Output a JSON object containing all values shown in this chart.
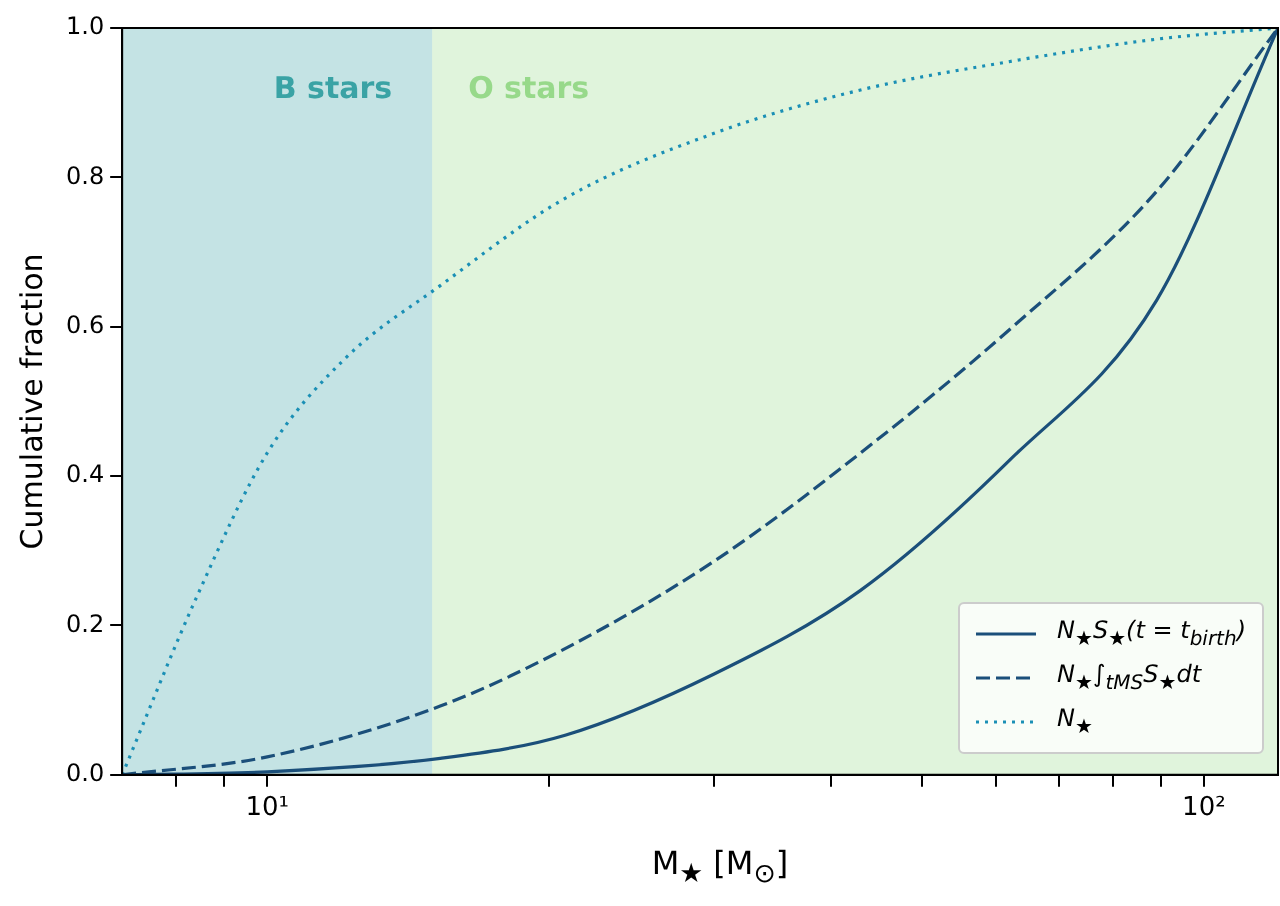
{
  "chart_data": {
    "type": "line",
    "xlabel": "M$_{★}$ [M$_{⊙}$]",
    "ylabel": "Cumulative fraction",
    "log": "x",
    "grid": false,
    "legend": "bottom right",
    "marker": "none",
    "xlim": [
      7,
      120
    ],
    "ylim": [
      0,
      1
    ],
    "xticks": [
      {
        "value": 8,
        "label": null
      },
      {
        "value": 9,
        "label": null
      },
      {
        "value": 10,
        "label": "10¹"
      },
      {
        "value": 20,
        "label": null
      },
      {
        "value": 30,
        "label": null
      },
      {
        "value": 40,
        "label": null
      },
      {
        "value": 50,
        "label": null
      },
      {
        "value": 60,
        "label": null
      },
      {
        "value": 70,
        "label": null
      },
      {
        "value": 80,
        "label": null
      },
      {
        "value": 90,
        "label": null
      },
      {
        "value": 100,
        "label": "10²"
      }
    ],
    "yticks": [
      {
        "value": 0,
        "label": "0.0"
      },
      {
        "value": 0.2,
        "label": "0.2"
      },
      {
        "value": 0.4,
        "label": "0.4"
      },
      {
        "value": 0.6,
        "label": "0.6"
      },
      {
        "value": 0.8,
        "label": "0.8"
      },
      {
        "value": 1,
        "label": "1.0"
      }
    ],
    "bands": [
      {
        "axis": "x",
        "from": 7,
        "to": 15,
        "label": "B stars",
        "color": "#3aa3a5"
      },
      {
        "axis": "x",
        "from": 15,
        "to": 120,
        "label": "O stars",
        "color": "#97d98a"
      }
    ],
    "series": [
      {
        "name": "N$_{★}$S$_{★}$(t = t$_{birth}$)",
        "color": "#1b4f7a",
        "line_style": "solid",
        "x": [
          7,
          10,
          15.3,
          20.8,
          30,
          43,
          62,
          89,
          120
        ],
        "values": [
          0,
          0.004,
          0.022,
          0.053,
          0.135,
          0.247,
          0.421,
          0.635,
          1
        ]
      },
      {
        "name": "N$_{★}$∫$_{tMS}$S$_{★}$dt",
        "color": "#1b4f7a",
        "line_style": "dashed",
        "x": [
          7,
          10,
          15.3,
          20.8,
          30,
          43,
          62,
          89,
          120
        ],
        "values": [
          0,
          0.024,
          0.092,
          0.169,
          0.286,
          0.431,
          0.596,
          0.781,
          1
        ]
      },
      {
        "name": "N$_{★}$",
        "color": "#1a8fb5",
        "line_style": "dotted",
        "x": [
          7,
          8.4,
          10,
          12.1,
          15.3,
          20.8,
          30,
          43,
          62,
          89,
          120
        ],
        "values": [
          0,
          0.237,
          0.431,
          0.557,
          0.655,
          0.772,
          0.859,
          0.917,
          0.955,
          0.985,
          1
        ]
      }
    ]
  }
}
